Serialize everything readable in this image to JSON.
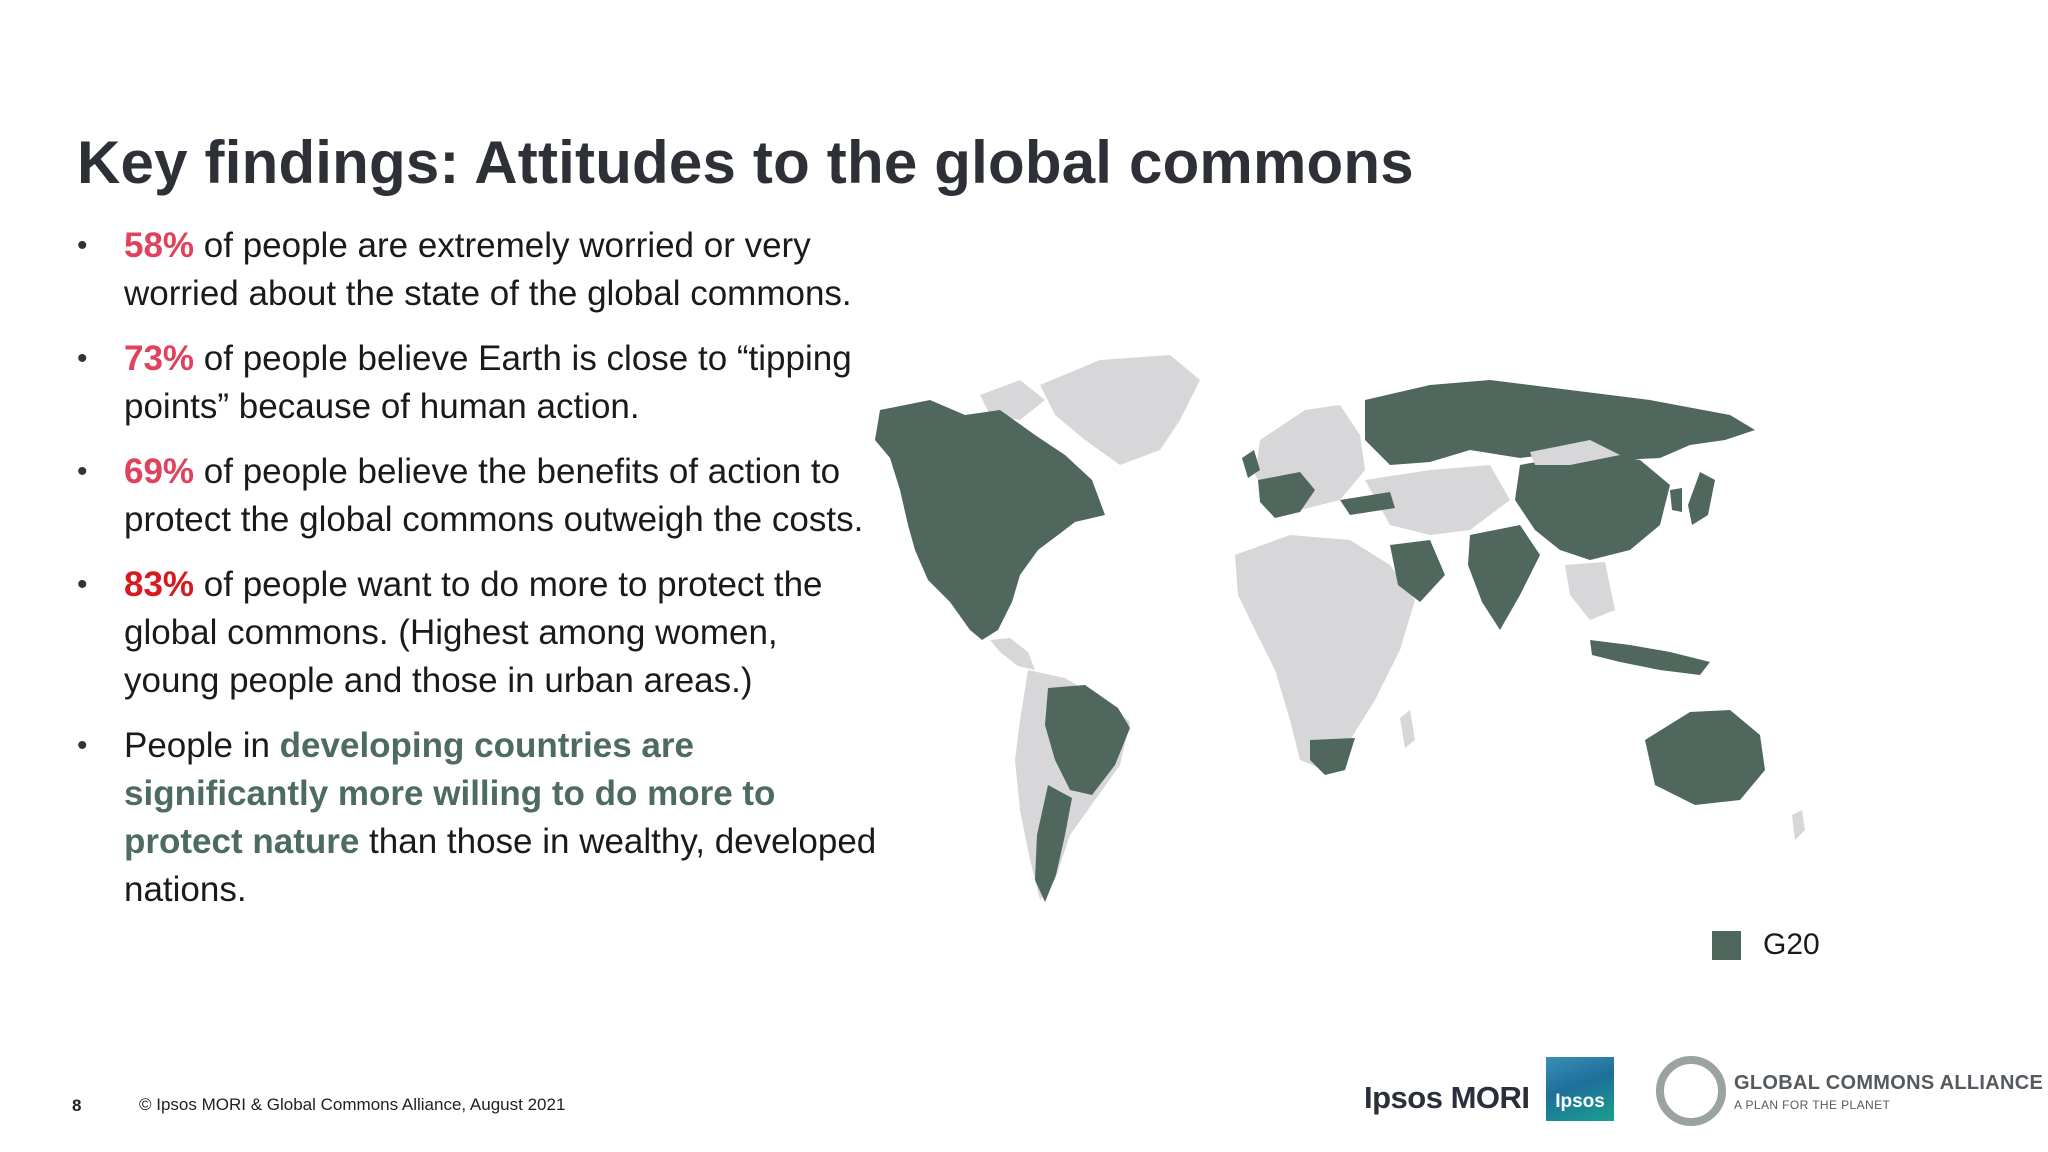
{
  "title": "Key findings: Attitudes to the global commons",
  "bullets": [
    {
      "highlight": "58%",
      "text": " of people are extremely worried or very worried about the state of the global commons."
    },
    {
      "highlight": "73%",
      "text": " of people believe Earth is close to “tipping points” because of human action."
    },
    {
      "highlight": "69%",
      "text": " of people believe the benefits of action to protect the global commons outweigh the costs."
    },
    {
      "highlight": "83%",
      "text": " of people want to do more to protect the global commons. (Highest among women, young people and those in urban areas.)"
    },
    {
      "prefix": "People in ",
      "emphasis": "developing countries are significantly more willing to do more to protect nature",
      "suffix": " than those in wealthy, developed nations."
    }
  ],
  "legend": {
    "label": "G20"
  },
  "footer": {
    "page_number": "8",
    "copyright": "© Ipsos MORI & Global Commons Alliance, August 2021"
  },
  "logos": {
    "ipsos_mori": "Ipsos MORI",
    "ipsos_badge": "Ipsos",
    "gca_name": "GLOBAL COMMONS ALLIANCE",
    "gca_tagline": "A PLAN FOR THE PLANET"
  },
  "colors": {
    "g20": "#4f675c",
    "other_countries": "#d7d7da",
    "percent_highlight": "#e0425d",
    "emphasis_text": "#4d6b61"
  },
  "map": {
    "legend_series": "G20"
  }
}
